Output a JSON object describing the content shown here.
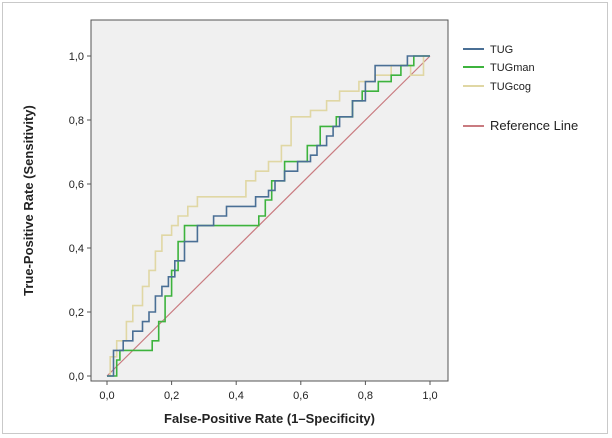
{
  "chart_data": {
    "type": "line",
    "title": "",
    "xlabel": "False-Positive Rate (1–Specificity)",
    "ylabel": "True-Positive Rate (Sensitivity)",
    "xlim": [
      0,
      1
    ],
    "ylim": [
      0,
      1
    ],
    "x_ticks": [
      "0,0",
      "0,2",
      "0,4",
      "0,6",
      "0,8",
      "1,0"
    ],
    "y_ticks": [
      "0,0",
      "0,2",
      "0,4",
      "0,6",
      "0,8",
      "1,0"
    ],
    "grid": false,
    "legend_position": "right",
    "series": [
      {
        "name": "TUG",
        "color": "#4a6f95",
        "x": [
          0,
          0.02,
          0.02,
          0.05,
          0.05,
          0.08,
          0.08,
          0.11,
          0.11,
          0.13,
          0.13,
          0.15,
          0.15,
          0.17,
          0.17,
          0.19,
          0.19,
          0.21,
          0.21,
          0.24,
          0.24,
          0.28,
          0.28,
          0.33,
          0.33,
          0.37,
          0.37,
          0.41,
          0.41,
          0.46,
          0.46,
          0.5,
          0.5,
          0.52,
          0.52,
          0.55,
          0.55,
          0.59,
          0.59,
          0.63,
          0.63,
          0.65,
          0.65,
          0.68,
          0.68,
          0.7,
          0.7,
          0.72,
          0.72,
          0.76,
          0.76,
          0.8,
          0.8,
          0.83,
          0.83,
          0.87,
          0.87,
          0.93,
          0.93,
          0.96,
          0.96,
          1.0
        ],
        "y": [
          0,
          0,
          0.08,
          0.08,
          0.11,
          0.11,
          0.14,
          0.14,
          0.17,
          0.17,
          0.2,
          0.2,
          0.25,
          0.25,
          0.28,
          0.28,
          0.31,
          0.31,
          0.36,
          0.36,
          0.42,
          0.42,
          0.47,
          0.47,
          0.5,
          0.5,
          0.53,
          0.53,
          0.53,
          0.53,
          0.56,
          0.56,
          0.58,
          0.58,
          0.61,
          0.61,
          0.64,
          0.64,
          0.67,
          0.67,
          0.69,
          0.69,
          0.72,
          0.72,
          0.75,
          0.75,
          0.78,
          0.78,
          0.81,
          0.81,
          0.86,
          0.86,
          0.92,
          0.92,
          0.97,
          0.97,
          0.97,
          0.97,
          1.0,
          1.0,
          1.0,
          1.0
        ]
      },
      {
        "name": "TUGman",
        "color": "#3db33d",
        "x": [
          0,
          0.03,
          0.03,
          0.04,
          0.04,
          0.14,
          0.14,
          0.16,
          0.16,
          0.18,
          0.18,
          0.2,
          0.2,
          0.22,
          0.22,
          0.24,
          0.24,
          0.47,
          0.47,
          0.49,
          0.49,
          0.51,
          0.51,
          0.55,
          0.55,
          0.59,
          0.59,
          0.62,
          0.62,
          0.66,
          0.66,
          0.71,
          0.71,
          0.76,
          0.76,
          0.79,
          0.79,
          0.84,
          0.84,
          0.88,
          0.88,
          0.91,
          0.91,
          0.95,
          0.95,
          1.0
        ],
        "y": [
          0,
          0,
          0.05,
          0.05,
          0.08,
          0.08,
          0.11,
          0.11,
          0.17,
          0.17,
          0.25,
          0.25,
          0.33,
          0.33,
          0.42,
          0.42,
          0.47,
          0.47,
          0.5,
          0.5,
          0.55,
          0.55,
          0.61,
          0.61,
          0.67,
          0.67,
          0.67,
          0.67,
          0.72,
          0.72,
          0.78,
          0.78,
          0.81,
          0.81,
          0.86,
          0.86,
          0.89,
          0.89,
          0.92,
          0.92,
          0.94,
          0.94,
          0.97,
          0.97,
          1.0,
          1.0
        ]
      },
      {
        "name": "TUGcog",
        "color": "#e0d7a4",
        "x": [
          0,
          0.01,
          0.01,
          0.03,
          0.03,
          0.06,
          0.06,
          0.08,
          0.08,
          0.11,
          0.11,
          0.13,
          0.13,
          0.15,
          0.15,
          0.17,
          0.17,
          0.2,
          0.2,
          0.22,
          0.22,
          0.25,
          0.25,
          0.28,
          0.28,
          0.43,
          0.43,
          0.46,
          0.46,
          0.5,
          0.5,
          0.54,
          0.54,
          0.57,
          0.57,
          0.63,
          0.63,
          0.68,
          0.68,
          0.72,
          0.72,
          0.78,
          0.78,
          0.83,
          0.83,
          0.88,
          0.88,
          0.94,
          0.94,
          0.98,
          0.98,
          1.0
        ],
        "y": [
          0,
          0,
          0.06,
          0.06,
          0.11,
          0.11,
          0.17,
          0.17,
          0.22,
          0.22,
          0.28,
          0.28,
          0.33,
          0.33,
          0.39,
          0.39,
          0.44,
          0.44,
          0.47,
          0.47,
          0.5,
          0.5,
          0.53,
          0.53,
          0.56,
          0.56,
          0.61,
          0.61,
          0.64,
          0.64,
          0.67,
          0.67,
          0.72,
          0.72,
          0.81,
          0.81,
          0.83,
          0.83,
          0.86,
          0.86,
          0.89,
          0.89,
          0.92,
          0.92,
          0.94,
          0.94,
          0.97,
          0.97,
          0.94,
          0.94,
          1.0,
          1.0
        ]
      },
      {
        "name": "Reference Line",
        "color": "#c97b80",
        "x": [
          0,
          1
        ],
        "y": [
          0,
          1
        ]
      }
    ]
  }
}
